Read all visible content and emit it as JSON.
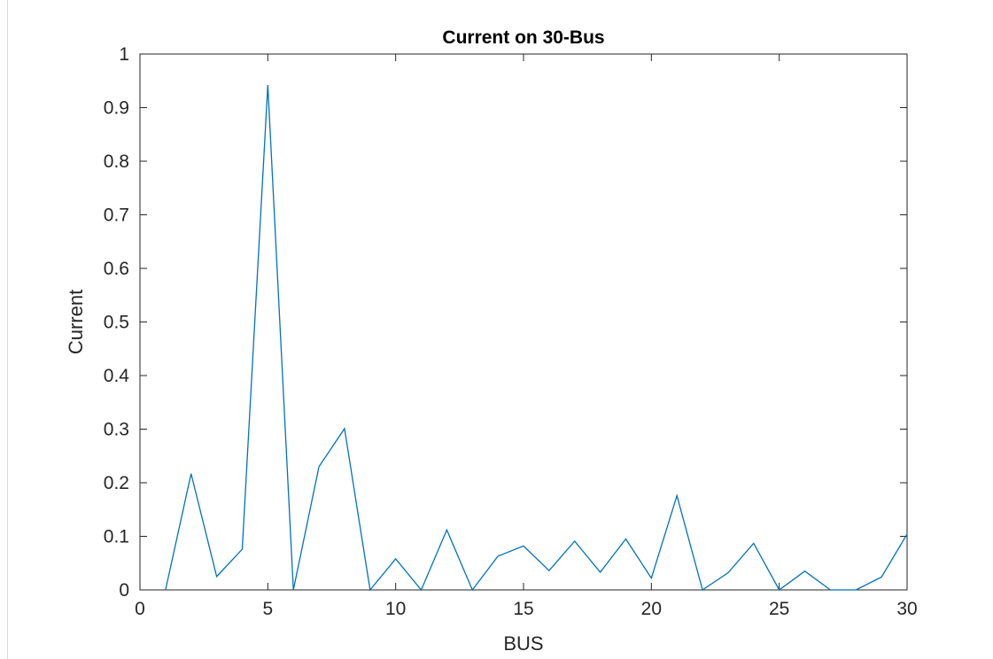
{
  "chart_data": {
    "type": "line",
    "title": "Current on 30-Bus",
    "xlabel": "BUS",
    "ylabel": "Current",
    "xlim": [
      0,
      30
    ],
    "ylim": [
      0,
      1
    ],
    "xticks": [
      "0",
      "5",
      "10",
      "15",
      "20",
      "25",
      "30"
    ],
    "yticks": [
      "0",
      "0.1",
      "0.2",
      "0.3",
      "0.4",
      "0.5",
      "0.6",
      "0.7",
      "0.8",
      "0.9",
      "1"
    ],
    "grid": false,
    "series": [
      {
        "color": "#0072bd",
        "x": [
          1,
          2,
          3,
          4,
          5,
          6,
          7,
          8,
          9,
          10,
          11,
          12,
          13,
          14,
          15,
          16,
          17,
          18,
          19,
          20,
          21,
          22,
          23,
          24,
          25,
          26,
          27,
          28,
          29,
          30
        ],
        "y": [
          0,
          0.217,
          0.025,
          0.076,
          0.942,
          0,
          0.23,
          0.301,
          0,
          0.058,
          0,
          0.112,
          0,
          0.063,
          0.082,
          0.036,
          0.091,
          0.033,
          0.095,
          0.022,
          0.176,
          0,
          0.032,
          0.087,
          0,
          0.035,
          0,
          0,
          0.024,
          0.104
        ]
      }
    ]
  }
}
